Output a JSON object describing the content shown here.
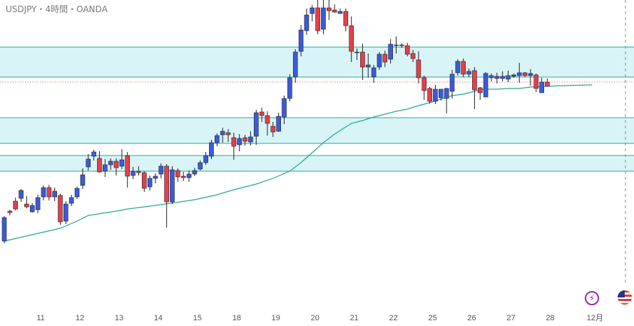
{
  "header": {
    "title": "USDJPY・4時間・OANDA"
  },
  "colors": {
    "up": "#3b5bdb",
    "down": "#e53f4a",
    "zone_fill": "#d8f4f7",
    "zone_line": "#2aa99a",
    "ma_line": "#26a69a",
    "price_line": "#e0857f",
    "future_line": "#888888"
  },
  "icons": {
    "lightning": "lightning-icon",
    "flag": "us-flag-icon"
  },
  "lightning_glyph": "⚡",
  "chart_data": {
    "type": "candlestick",
    "symbol": "USDJPY",
    "timeframe": "4時間",
    "source": "OANDA",
    "ylim": [
      0,
      400
    ],
    "x_tick_labels": [
      {
        "label": "11",
        "i": 6
      },
      {
        "label": "12",
        "i": 13
      },
      {
        "label": "13",
        "i": 20
      },
      {
        "label": "14",
        "i": 27
      },
      {
        "label": "15",
        "i": 34
      },
      {
        "label": "18",
        "i": 41
      },
      {
        "label": "19",
        "i": 48
      },
      {
        "label": "20",
        "i": 55
      },
      {
        "label": "21",
        "i": 62
      },
      {
        "label": "22",
        "i": 69
      },
      {
        "label": "25",
        "i": 76
      },
      {
        "label": "26",
        "i": 83
      },
      {
        "label": "27",
        "i": 90
      },
      {
        "label": "28",
        "i": 97
      },
      {
        "label": "12月",
        "i": 105
      }
    ],
    "candles": [
      [
        62,
        95,
        97,
        59
      ],
      [
        104,
        102,
        106,
        98
      ],
      [
        118,
        107,
        123,
        105
      ],
      [
        122,
        133,
        135,
        117
      ],
      [
        114,
        110,
        125,
        108
      ],
      [
        103,
        112,
        115,
        102
      ],
      [
        106,
        123,
        127,
        101
      ],
      [
        124,
        137,
        140,
        119
      ],
      [
        137,
        124,
        141,
        119
      ],
      [
        124,
        132,
        137,
        118
      ],
      [
        126,
        89,
        128,
        85
      ],
      [
        90,
        114,
        118,
        86
      ],
      [
        115,
        123,
        127,
        111
      ],
      [
        124,
        136,
        138,
        121
      ],
      [
        140,
        155,
        164,
        135
      ],
      [
        166,
        177,
        184,
        161
      ],
      [
        181,
        187,
        190,
        175
      ],
      [
        178,
        159,
        188,
        158
      ],
      [
        160,
        169,
        177,
        152
      ],
      [
        169,
        174,
        178,
        162
      ],
      [
        174,
        165,
        178,
        154
      ],
      [
        167,
        176,
        191,
        163
      ],
      [
        182,
        153,
        187,
        137
      ],
      [
        154,
        160,
        166,
        149
      ],
      [
        160,
        158,
        167,
        154
      ],
      [
        158,
        136,
        160,
        131
      ],
      [
        138,
        150,
        154,
        133
      ],
      [
        150,
        153,
        157,
        143
      ],
      [
        156,
        167,
        171,
        150
      ],
      [
        167,
        117,
        170,
        81
      ],
      [
        117,
        162,
        167,
        114
      ],
      [
        161,
        152,
        164,
        145
      ],
      [
        153,
        151,
        159,
        146
      ],
      [
        151,
        156,
        161,
        145
      ],
      [
        156,
        161,
        165,
        153
      ],
      [
        163,
        172,
        175,
        161
      ],
      [
        172,
        182,
        187,
        169
      ],
      [
        181,
        200,
        204,
        177
      ],
      [
        200,
        210,
        213,
        195
      ],
      [
        211,
        216,
        221,
        200
      ],
      [
        214,
        211,
        219,
        201
      ],
      [
        207,
        195,
        214,
        176
      ],
      [
        197,
        206,
        212,
        188
      ],
      [
        207,
        202,
        211,
        196
      ],
      [
        201,
        208,
        216,
        196
      ],
      [
        209,
        242,
        246,
        197
      ],
      [
        243,
        238,
        249,
        229
      ],
      [
        238,
        227,
        244,
        210
      ],
      [
        223,
        215,
        229,
        208
      ],
      [
        216,
        237,
        242,
        215
      ],
      [
        236,
        262,
        266,
        226
      ],
      [
        262,
        291,
        296,
        258
      ],
      [
        292,
        327,
        331,
        284
      ],
      [
        328,
        358,
        365,
        321
      ],
      [
        357,
        379,
        388,
        351
      ],
      [
        381,
        389,
        393,
        370
      ],
      [
        389,
        357,
        402,
        352
      ],
      [
        359,
        389,
        410,
        352
      ],
      [
        389,
        385,
        411,
        372
      ],
      [
        386,
        383,
        394,
        382
      ],
      [
        381,
        384,
        388,
        381
      ],
      [
        384,
        364,
        388,
        356
      ],
      [
        364,
        328,
        377,
        313
      ],
      [
        327,
        327,
        332,
        316
      ],
      [
        327,
        306,
        339,
        288
      ],
      [
        306,
        309,
        325,
        291
      ],
      [
        292,
        305,
        309,
        284
      ],
      [
        306,
        324,
        327,
        302
      ],
      [
        324,
        313,
        329,
        306
      ],
      [
        317,
        338,
        345,
        311
      ],
      [
        337,
        337,
        349,
        325
      ],
      [
        337,
        336,
        339,
        333
      ],
      [
        336,
        324,
        340,
        321
      ],
      [
        325,
        318,
        330,
        313
      ],
      [
        316,
        291,
        328,
        283
      ],
      [
        291,
        273,
        294,
        260
      ],
      [
        276,
        258,
        278,
        255
      ],
      [
        258,
        275,
        281,
        254
      ],
      [
        263,
        275,
        273,
        259
      ],
      [
        262,
        276,
        277,
        241
      ],
      [
        272,
        296,
        302,
        262
      ],
      [
        298,
        314,
        317,
        294
      ],
      [
        314,
        296,
        318,
        292
      ],
      [
        296,
        300,
        304,
        292
      ],
      [
        301,
        274,
        306,
        247
      ],
      [
        277,
        270,
        278,
        260
      ],
      [
        264,
        297,
        299,
        268
      ],
      [
        291,
        294,
        297,
        286
      ],
      [
        290,
        293,
        298,
        283
      ],
      [
        290,
        293,
        300,
        286
      ],
      [
        289,
        294,
        301,
        285
      ],
      [
        293,
        295,
        297,
        291
      ],
      [
        294,
        298,
        312,
        284
      ],
      [
        298,
        294,
        299,
        292
      ],
      [
        294,
        297,
        303,
        280
      ],
      [
        295,
        276,
        297,
        271
      ],
      [
        270,
        285,
        291,
        272
      ],
      [
        285,
        279,
        290,
        280
      ]
    ],
    "ma": [
      [
        0,
        62
      ],
      [
        5,
        71
      ],
      [
        10,
        80
      ],
      [
        13,
        90
      ],
      [
        15,
        98
      ],
      [
        20,
        104
      ],
      [
        22,
        107
      ],
      [
        27,
        112
      ],
      [
        34,
        120
      ],
      [
        38,
        127
      ],
      [
        41,
        134
      ],
      [
        45,
        142
      ],
      [
        48,
        150
      ],
      [
        51,
        160
      ],
      [
        53,
        172
      ],
      [
        55,
        186
      ],
      [
        57,
        200
      ],
      [
        59,
        212
      ],
      [
        61,
        222
      ],
      [
        62,
        227
      ],
      [
        64,
        231
      ],
      [
        66,
        236
      ],
      [
        68,
        240
      ],
      [
        70,
        244
      ],
      [
        72,
        247
      ],
      [
        74,
        252
      ],
      [
        76,
        256
      ],
      [
        78,
        261
      ],
      [
        80,
        266
      ],
      [
        82,
        268
      ],
      [
        84,
        272
      ],
      [
        85,
        274
      ],
      [
        86,
        275
      ],
      [
        88,
        275
      ],
      [
        90,
        276
      ],
      [
        92,
        276
      ],
      [
        94,
        278
      ],
      [
        97,
        279
      ],
      [
        100,
        280
      ],
      [
        105,
        281
      ]
    ],
    "zones": [
      [
        292,
        334
      ],
      [
        199,
        235
      ],
      [
        160,
        182
      ]
    ],
    "current_price": 285
  }
}
